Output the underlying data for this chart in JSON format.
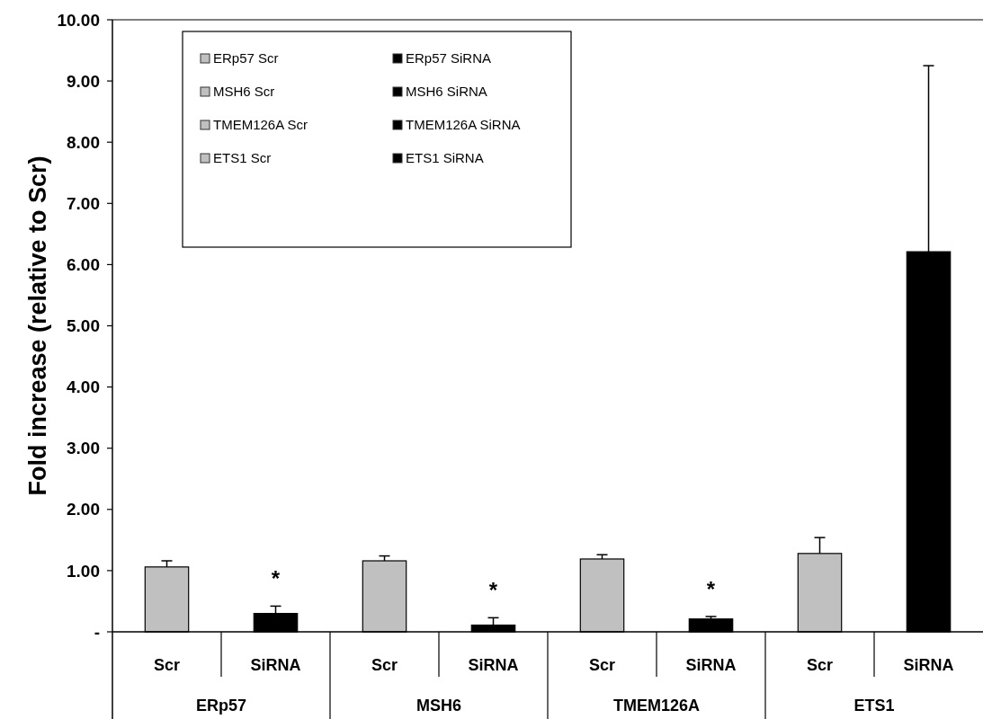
{
  "chart_data": {
    "type": "bar",
    "ylabel": "Fold increase (relative to Scr)",
    "categories": [
      "Scr",
      "SiRNA",
      "Scr",
      "SiRNA",
      "Scr",
      "SiRNA",
      "Scr",
      "SiRNA"
    ],
    "annotations": [
      "ERp57",
      "MSH6",
      "TMEM126A",
      "ETS1"
    ],
    "series": [
      {
        "name": "ERp57 Scr",
        "color": "#c0c0c0",
        "values": [
          1.06,
          null,
          null,
          null,
          null,
          null,
          null,
          null
        ],
        "errors": [
          0.1,
          null,
          null,
          null,
          null,
          null,
          null,
          null
        ]
      },
      {
        "name": "ERp57 SiRNA",
        "color": "#000000",
        "values": [
          null,
          0.3,
          null,
          null,
          null,
          null,
          null,
          null
        ],
        "errors": [
          null,
          0.12,
          null,
          null,
          null,
          null,
          null,
          null
        ],
        "value_labels": [
          null,
          "*",
          null,
          null,
          null,
          null,
          null,
          null
        ]
      },
      {
        "name": "MSH6 Scr",
        "color": "#c0c0c0",
        "values": [
          null,
          null,
          1.16,
          null,
          null,
          null,
          null,
          null
        ],
        "errors": [
          null,
          null,
          0.08,
          null,
          null,
          null,
          null,
          null
        ]
      },
      {
        "name": "MSH6 SiRNA",
        "color": "#000000",
        "values": [
          null,
          null,
          null,
          0.11,
          null,
          null,
          null,
          null
        ],
        "errors": [
          null,
          null,
          null,
          0.12,
          null,
          null,
          null,
          null
        ],
        "value_labels": [
          null,
          null,
          null,
          "*",
          null,
          null,
          null,
          null
        ]
      },
      {
        "name": "TMEM126A Scr",
        "color": "#c0c0c0",
        "values": [
          null,
          null,
          null,
          null,
          1.19,
          null,
          null,
          null
        ],
        "errors": [
          null,
          null,
          null,
          null,
          0.07,
          null,
          null,
          null
        ]
      },
      {
        "name": "TMEM126A SiRNA",
        "color": "#000000",
        "values": [
          null,
          null,
          null,
          null,
          null,
          0.21,
          null,
          null
        ],
        "errors": [
          null,
          null,
          null,
          null,
          null,
          0.04,
          null,
          null
        ],
        "value_labels": [
          null,
          null,
          null,
          null,
          null,
          "*",
          null,
          null
        ]
      },
      {
        "name": "ETS1 Scr",
        "color": "#c0c0c0",
        "values": [
          null,
          null,
          null,
          null,
          null,
          null,
          1.28,
          null
        ],
        "errors": [
          null,
          null,
          null,
          null,
          null,
          null,
          0.26,
          null
        ]
      },
      {
        "name": "ETS1 SiRNA",
        "color": "#000000",
        "values": [
          null,
          null,
          null,
          null,
          null,
          null,
          null,
          6.21
        ],
        "errors": [
          null,
          null,
          null,
          null,
          null,
          null,
          null,
          3.04
        ]
      }
    ],
    "ylim": [
      0,
      10
    ],
    "yticks": [
      {
        "value": 0,
        "label": "-"
      },
      {
        "value": 1,
        "label": "1.00"
      },
      {
        "value": 2,
        "label": "2.00"
      },
      {
        "value": 3,
        "label": "3.00"
      },
      {
        "value": 4,
        "label": "4.00"
      },
      {
        "value": 5,
        "label": "5.00"
      },
      {
        "value": 6,
        "label": "6.00"
      },
      {
        "value": 7,
        "label": "7.00"
      },
      {
        "value": 8,
        "label": "8.00"
      },
      {
        "value": 9,
        "label": "9.00"
      },
      {
        "value": 10,
        "label": "10.00"
      }
    ],
    "grid": false,
    "legend": "top left"
  }
}
